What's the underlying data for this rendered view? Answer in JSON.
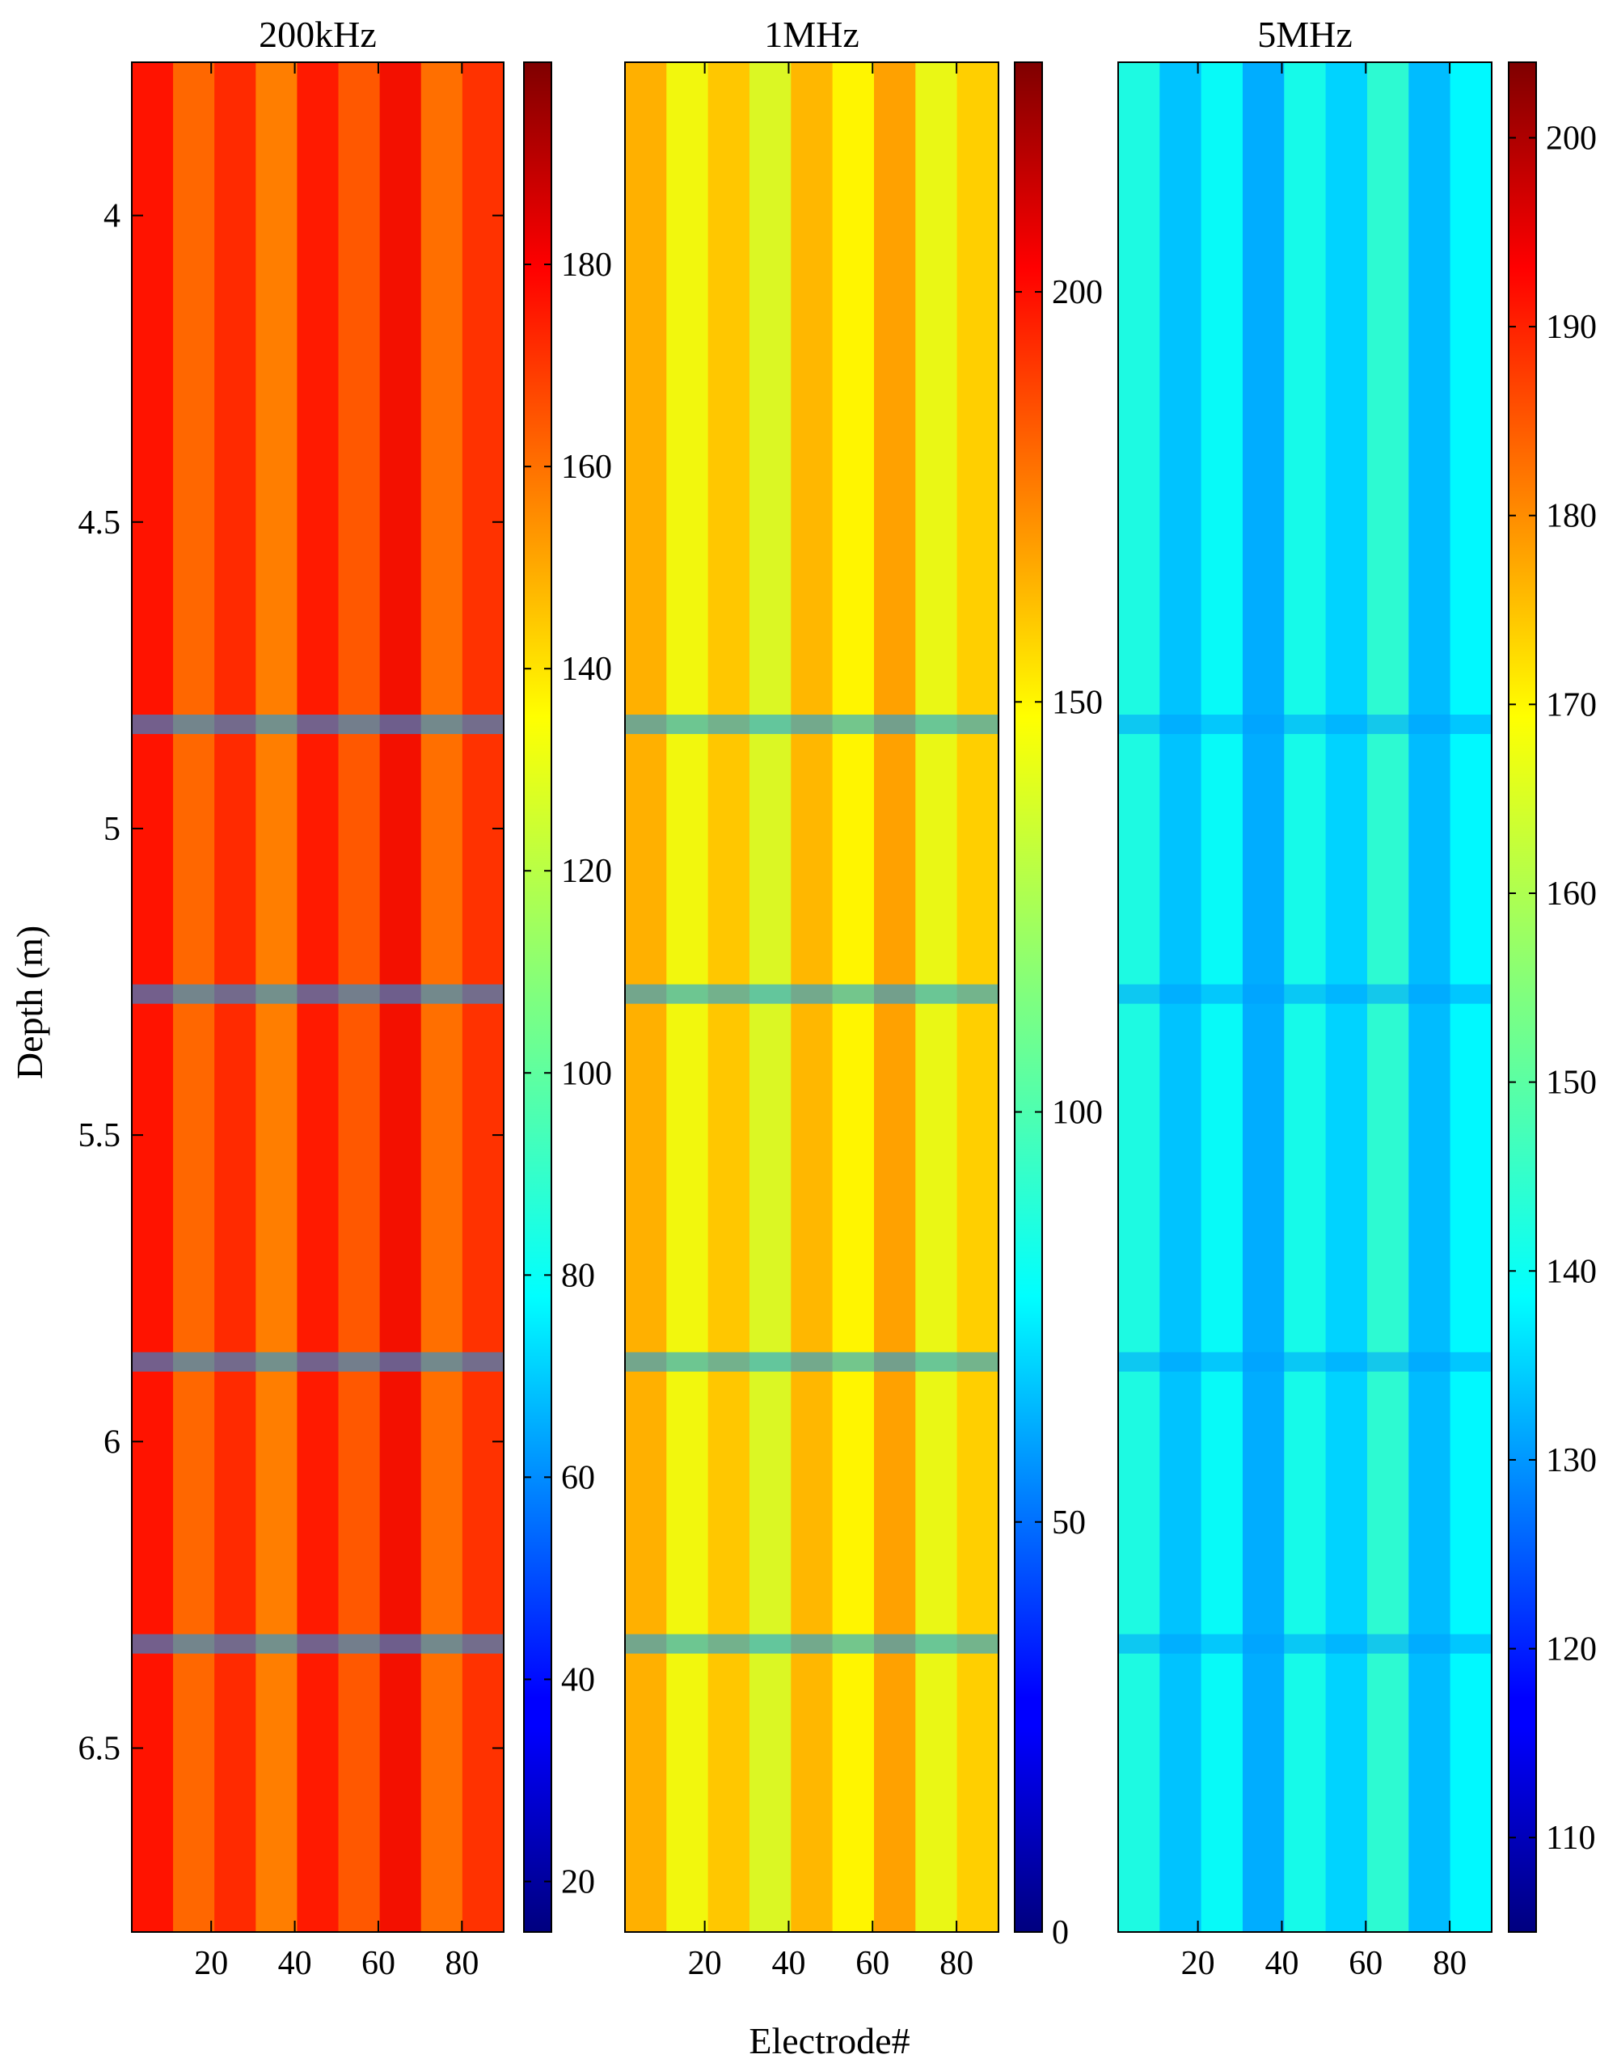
{
  "figure": {
    "xlabel": "Electrode#",
    "ylabel": "Depth (m)"
  },
  "chart_data": [
    {
      "type": "heatmap",
      "title": "200kHz",
      "x_range": [
        1,
        90
      ],
      "y_range": [
        3.75,
        6.8
      ],
      "y_reversed": true,
      "x_ticks": [
        20,
        40,
        60,
        80
      ],
      "y_ticks": [
        4,
        4.5,
        5,
        5.5,
        6,
        6.5
      ],
      "colorbar": {
        "min": 15,
        "max": 200,
        "ticks": [
          20,
          40,
          60,
          80,
          100,
          120,
          140,
          160,
          180
        ]
      },
      "colormap": "jet",
      "typical_value": 165,
      "low_value_bands_depth_m": [
        4.83,
        5.27,
        5.87,
        6.33
      ]
    },
    {
      "type": "heatmap",
      "title": "1MHz",
      "x_range": [
        1,
        90
      ],
      "y_range": [
        3.75,
        6.8
      ],
      "y_reversed": true,
      "x_ticks": [
        20,
        40,
        60,
        80
      ],
      "y_ticks": [],
      "colorbar": {
        "min": 0,
        "max": 228,
        "ticks": [
          0,
          50,
          100,
          150,
          200
        ]
      },
      "colormap": "jet",
      "typical_value": 150,
      "low_value_bands_depth_m": [
        4.83,
        5.27,
        5.87,
        6.33
      ]
    },
    {
      "type": "heatmap",
      "title": "5MHz",
      "x_range": [
        1,
        90
      ],
      "y_range": [
        3.75,
        6.8
      ],
      "y_reversed": true,
      "x_ticks": [
        20,
        40,
        60,
        80
      ],
      "y_ticks": [],
      "colorbar": {
        "min": 105,
        "max": 204,
        "ticks": [
          110,
          120,
          130,
          140,
          150,
          160,
          170,
          180,
          190,
          200
        ]
      },
      "colormap": "jet",
      "typical_value": 140,
      "low_value_bands_depth_m": [
        4.83,
        5.27,
        5.87,
        6.33
      ]
    }
  ]
}
